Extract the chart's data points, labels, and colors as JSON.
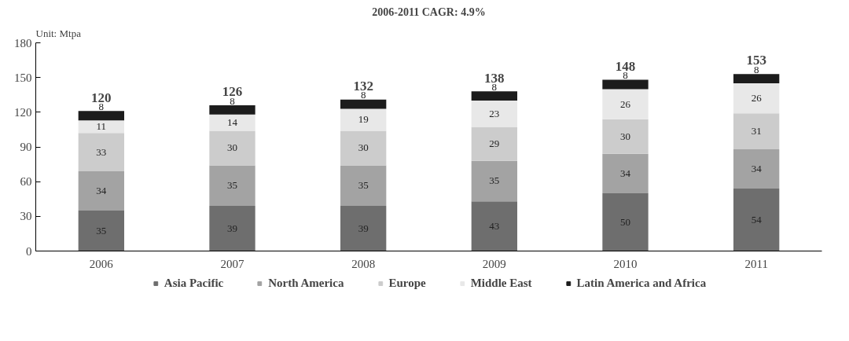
{
  "chart_data": {
    "type": "bar",
    "title": "2006-2011 CAGR: 4.9%",
    "ylabel": "Unit: Mtpa",
    "stacked": true,
    "data_labels": true,
    "grid": false,
    "legend": "bottom",
    "categories": [
      "2006",
      "2007",
      "2008",
      "2009",
      "2010",
      "2011"
    ],
    "series": [
      {
        "name": "Asia Pacific",
        "color": "#6e6e6e",
        "values": [
          35,
          39,
          39,
          43,
          50,
          54
        ]
      },
      {
        "name": "North America",
        "color": "#a3a3a3",
        "values": [
          34,
          35,
          35,
          35,
          34,
          34
        ]
      },
      {
        "name": "Europe",
        "color": "#cccccc",
        "values": [
          33,
          30,
          30,
          29,
          30,
          31
        ]
      },
      {
        "name": "Middle East",
        "color": "#e8e8e8",
        "values": [
          11,
          14,
          19,
          23,
          26,
          26
        ]
      },
      {
        "name": "Latin America and Africa",
        "color": "#1c1c1c",
        "values": [
          8,
          8,
          8,
          8,
          8,
          8
        ]
      }
    ],
    "totals": [
      "120",
      "126",
      "132",
      "138",
      "148",
      "153"
    ],
    "ylim": [
      0,
      180
    ],
    "yticks": [
      0,
      30,
      60,
      90,
      120,
      150,
      180
    ]
  }
}
